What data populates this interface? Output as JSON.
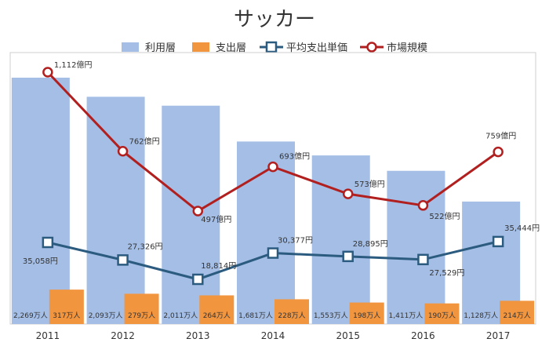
{
  "chart_data": {
    "type": "bar",
    "title": "サッカー",
    "categories": [
      "2011",
      "2012",
      "2013",
      "2014",
      "2015",
      "2016",
      "2017"
    ],
    "series": [
      {
        "name": "利用層",
        "kind": "bar",
        "axis": "left",
        "color": "#a4bee6",
        "values": [
          2269,
          2093,
          2011,
          1681,
          1553,
          1411,
          1128
        ],
        "labels": [
          "2,269万人",
          "2,093万人",
          "2,011万人",
          "1,681万人",
          "1,553万人",
          "1,411万人",
          "1,128万人"
        ]
      },
      {
        "name": "支出層",
        "kind": "bar",
        "axis": "left",
        "color": "#f2953f",
        "values": [
          317,
          279,
          264,
          228,
          198,
          190,
          214
        ],
        "labels": [
          "317万人",
          "279万人",
          "264万人",
          "228万人",
          "198万人",
          "190万人",
          "214万人"
        ]
      },
      {
        "name": "平均支出単価",
        "kind": "line",
        "axis": "right",
        "color": "#2c5b80",
        "values": [
          35058,
          27326,
          18814,
          30377,
          28895,
          27529,
          35444
        ],
        "labels": [
          "35,058円",
          "27,326円",
          "18,814円",
          "30,377円",
          "28,895円",
          "27,529円",
          "35,444円"
        ]
      },
      {
        "name": "市場規模",
        "kind": "line",
        "axis": "right",
        "color": "#b21f1f",
        "values": [
          1112,
          762,
          497,
          693,
          573,
          522,
          759
        ],
        "labels": [
          "1,112億円",
          "762億円",
          "497億円",
          "693億円",
          "573億円",
          "522億円",
          "759億円"
        ]
      }
    ],
    "legend_position": "top",
    "grid": false
  }
}
